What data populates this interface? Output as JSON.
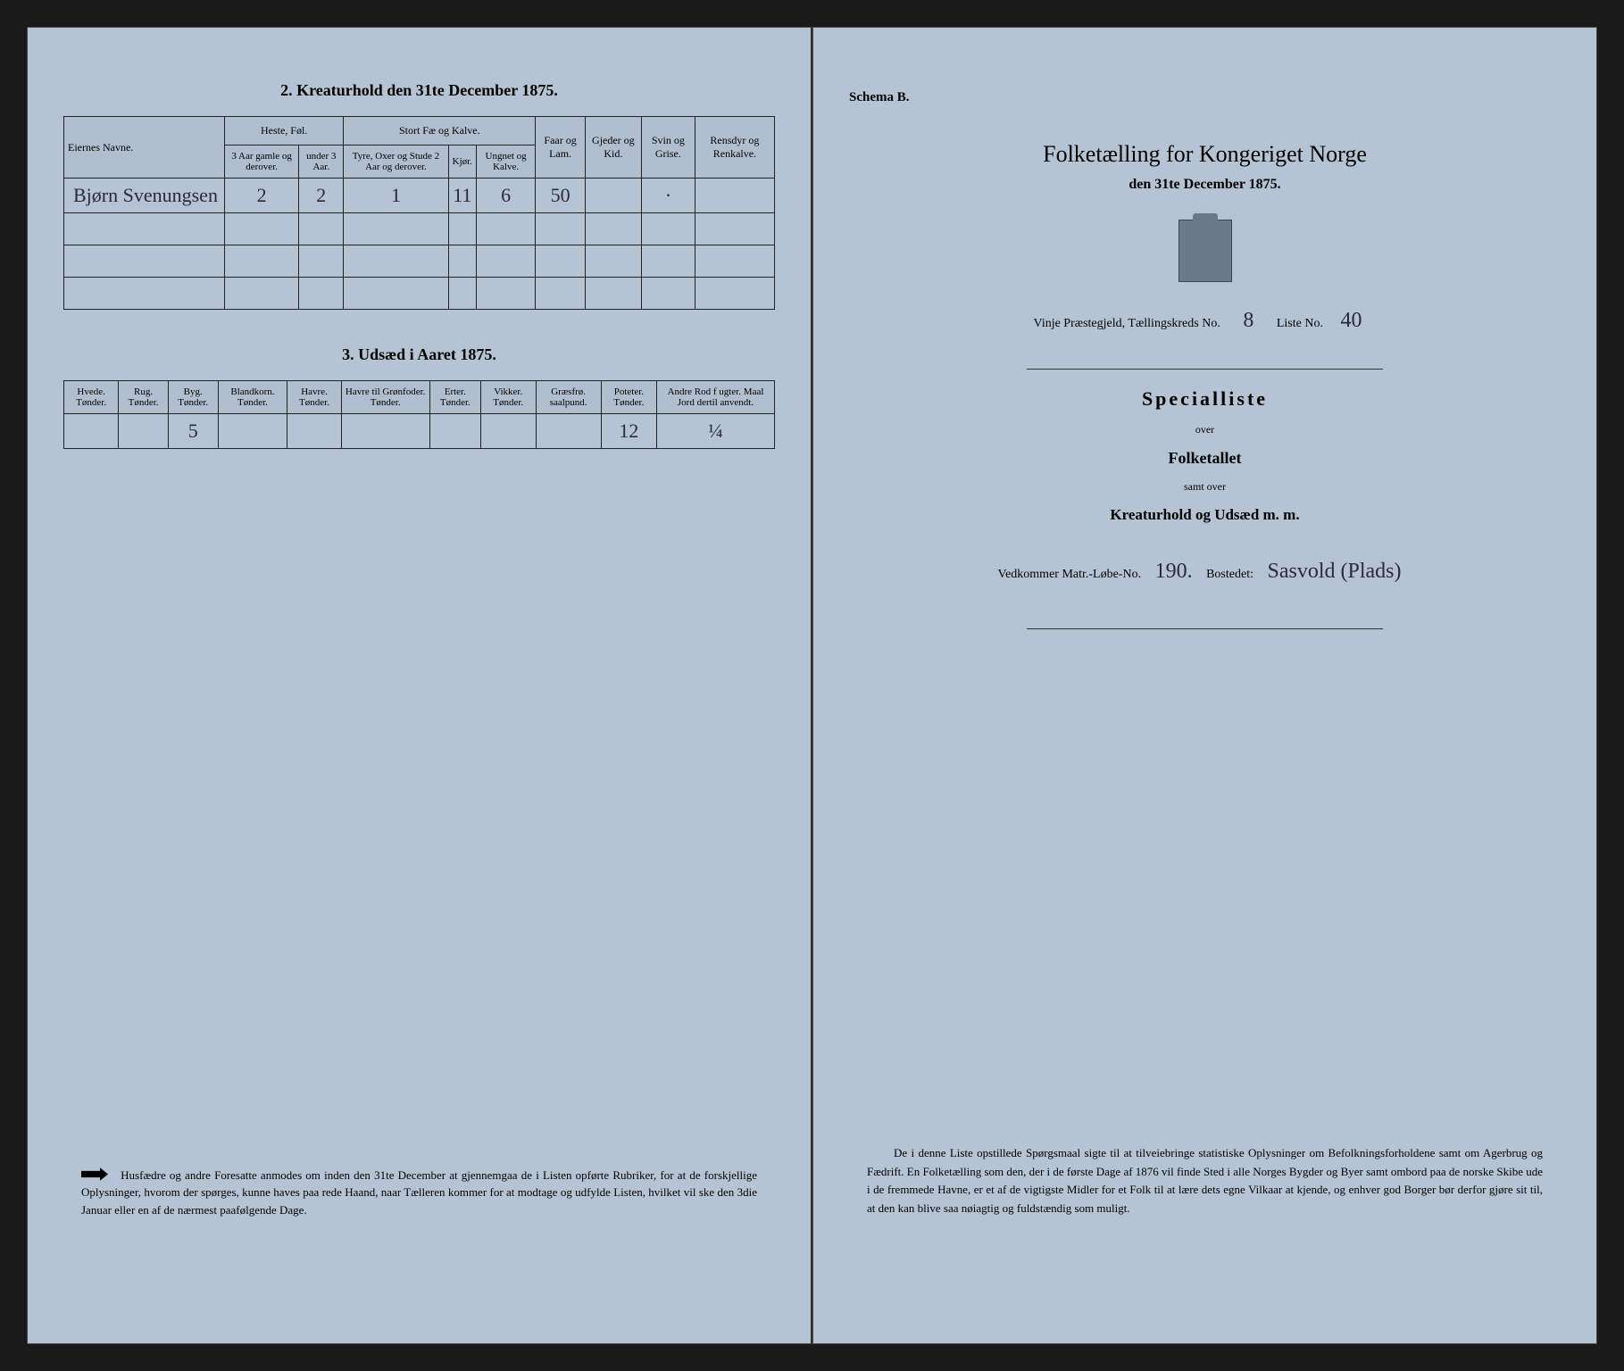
{
  "left": {
    "section2": {
      "title": "2. Kreaturhold den 31te December 1875.",
      "group_headers": [
        "Eiernes Navne.",
        "Heste, Føl.",
        "Stort Fæ og Kalve.",
        "Faar og Lam.",
        "Gjeder og Kid.",
        "Svin og Grise.",
        "Rensdyr og Renkalve."
      ],
      "sub_headers": {
        "heste1": "3 Aar gamle og derover.",
        "heste2": "under 3 Aar.",
        "fae1": "Tyre, Oxer og Stude 2 Aar og derover.",
        "fae2": "Kjør.",
        "fae3": "Ungnet og Kalve."
      },
      "row": {
        "name": "Bjørn Svenungsen",
        "heste_1": "2",
        "heste_2": "2",
        "fae_1": "1",
        "fae_2": "11",
        "fae_3": "6",
        "faar": "50",
        "gjeder": "",
        "svin": "·",
        "rensdyr": ""
      }
    },
    "section3": {
      "title": "3. Udsæd i Aaret 1875.",
      "headers": [
        "Hvede. Tønder.",
        "Rug. Tønder.",
        "Byg. Tønder.",
        "Blandkorn. Tønder.",
        "Havre. Tønder.",
        "Havre til Grønfoder. Tønder.",
        "Erter. Tønder.",
        "Vikker. Tønder.",
        "Græsfrø. saalpund.",
        "Poteter. Tønder.",
        "Andre Rod f ugter. Maal Jord dertil anvendt."
      ],
      "row": [
        "",
        "",
        "5",
        "",
        "",
        "",
        "",
        "",
        "",
        "12",
        "¼"
      ]
    },
    "footnote": "Husfædre og andre Foresatte anmodes om inden den 31te December at gjennemgaa de i Listen opførte Rubriker, for at de forskjellige Oplysninger, hvorom der spørges, kunne haves paa rede Haand, naar Tælleren kommer for at modtage og udfylde Listen, hvilket vil ske den 3die Januar eller en af de nærmest paafølgende Dage."
  },
  "right": {
    "schema": "Schema B.",
    "title": "Folketælling for Kongeriget Norge",
    "subtitle": "den 31te December 1875.",
    "form_line": {
      "pg": "Vinje Præstegjeld,",
      "tk_label": "Tællingskreds No.",
      "tk_no": "8",
      "liste_label": "Liste No.",
      "liste_no": "40"
    },
    "special": "Specialliste",
    "over": "over",
    "folketallet": "Folketallet",
    "samt": "samt over",
    "kreatur": "Kreaturhold og Udsæd m. m.",
    "bosted": {
      "matr_label": "Vedkommer Matr.-Løbe-No.",
      "matr_no": "190.",
      "bosted_label": "Bostedet:",
      "bosted_value": "Sasvold (Plads)"
    },
    "bottom_para": "De i denne Liste opstillede Spørgsmaal sigte til at tilveiebringe statistiske Oplysninger om Befolkningsforholdene samt om Agerbrug og Fædrift. En Folketælling som den, der i de første Dage af 1876 vil finde Sted i alle Norges Bygder og Byer samt ombord paa de norske Skibe ude i de fremmede Havne, er et af de vigtigste Midler for et Folk til at lære dets egne Vilkaar at kjende, og enhver god Borger bør derfor gjøre sit til, at den kan blive saa nøiagtig og fuldstændig som muligt."
  }
}
